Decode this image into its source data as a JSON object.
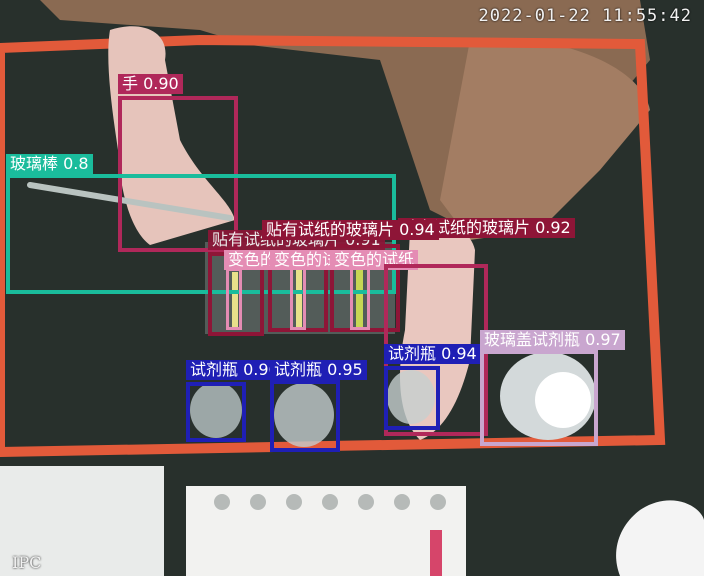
{
  "timestamp": "2022-01-22 11:55:42",
  "watermark": "IPC",
  "colors": {
    "hand": "#c2185b",
    "glass_rod": "#1abc9c",
    "test_paper_slide": "#8e1537",
    "changed_paper": "#e48cb4",
    "reagent_bottle": "#1f1fb5",
    "glass_cap_bottle": "#c9a6cf"
  },
  "detections": [
    {
      "label": "手 0.90",
      "color": "#b0285a"
    },
    {
      "label": "玻璃棒 0.8",
      "color": "#1abc9c"
    },
    {
      "label": "贴有试纸的玻璃片 0.94",
      "color": "#8e1537"
    },
    {
      "label": "贴有试纸的玻璃片 0.91",
      "color": "#8e1537"
    },
    {
      "label": "贴有试纸的玻璃片 0.92",
      "color": "#8e1537"
    },
    {
      "label": "变色的试纸",
      "color": "#e48cb4"
    },
    {
      "label": "变色的试纸",
      "color": "#e48cb4"
    },
    {
      "label": "变色的试纸",
      "color": "#e48cb4"
    },
    {
      "label": "试剂瓶 0.96",
      "color": "#1f1fb5"
    },
    {
      "label": "试剂瓶 0.95",
      "color": "#1f1fb5"
    },
    {
      "label": "试剂瓶 0.94",
      "color": "#1f1fb5"
    },
    {
      "label": "玻璃盖试剂瓶 0.97",
      "color": "#c9a6cf"
    }
  ]
}
